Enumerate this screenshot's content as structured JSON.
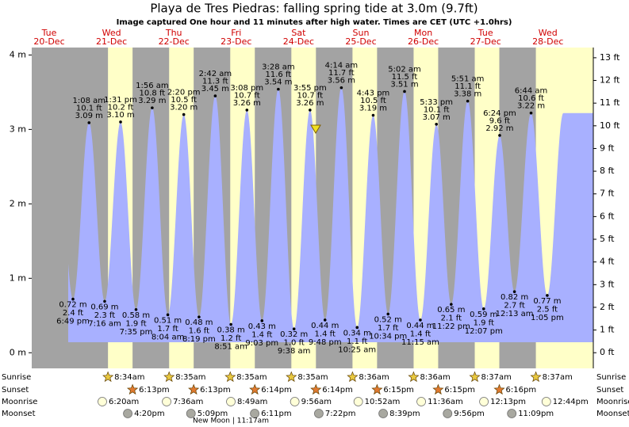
{
  "chart_data": {
    "type": "area",
    "title": "Playa de Tres Piedras: falling  spring tide at 3.0m (9.7ft)",
    "subtitle": "Image captured One hour and 11 minutes after high water. Times are CET (UTC +1.0hrs)",
    "color": "#a8b0ff",
    "daylight_color": "#ffffc8",
    "ylim": [
      -0.21,
      4.1
    ],
    "yticks": [
      {
        "value": 0,
        "label": "0 m"
      },
      {
        "value": 1,
        "label": "1 m"
      },
      {
        "value": 2,
        "label": "2 m"
      },
      {
        "value": 3,
        "label": "3 m"
      },
      {
        "value": 4,
        "label": "4 m"
      }
    ],
    "y2lim": [
      -0.69,
      13.45
    ],
    "y2ticks": [
      {
        "value": 0,
        "label": "0 ft"
      },
      {
        "value": 1,
        "label": "1 ft"
      },
      {
        "value": 2,
        "label": "2 ft"
      },
      {
        "value": 3,
        "label": "3 ft"
      },
      {
        "value": 4,
        "label": "4 ft"
      },
      {
        "value": 5,
        "label": "5 ft"
      },
      {
        "value": 6,
        "label": "6 ft"
      },
      {
        "value": 7,
        "label": "7 ft"
      },
      {
        "value": 8,
        "label": "8 ft"
      },
      {
        "value": 9,
        "label": "9 ft"
      },
      {
        "value": 10,
        "label": "10 ft"
      },
      {
        "value": 11,
        "label": "11 ft"
      },
      {
        "value": 12,
        "label": "12 ft"
      },
      {
        "value": 13,
        "label": "13 ft"
      }
    ],
    "rows": [
      "Sunrise",
      "Sunset",
      "Moonrise",
      "Moonset"
    ],
    "moon_phase": "New Moon | 11:17am",
    "days": [
      {
        "weekday": "Tue",
        "date": "20-Dec",
        "tides": [
          {
            "time": "6:49 pm",
            "value": 0.72,
            "value_label": "0.72 m",
            "ft_label": "2.4 ft"
          }
        ]
      },
      {
        "weekday": "Wed",
        "date": "21-Dec",
        "sunrise": "8:34am",
        "sunset": "6:13pm",
        "moonrise": "6:20am",
        "moonset": "4:20pm",
        "tides": [
          {
            "time": "1:08 am",
            "value": 3.09,
            "value_label": "3.09 m",
            "ft_label": "10.1 ft"
          },
          {
            "time": "7:16 am",
            "value": 0.69,
            "value_label": "0.69 m",
            "ft_label": "2.3 ft"
          },
          {
            "time": "1:31 pm",
            "value": 3.1,
            "value_label": "3.10 m",
            "ft_label": "10.2 ft"
          },
          {
            "time": "7:35 pm",
            "value": 0.58,
            "value_label": "0.58 m",
            "ft_label": "1.9 ft"
          }
        ]
      },
      {
        "weekday": "Thu",
        "date": "22-Dec",
        "sunrise": "8:35am",
        "sunset": "6:13pm",
        "moonrise": "7:36am",
        "moonset": "5:09pm",
        "tides": [
          {
            "time": "1:56 am",
            "value": 3.29,
            "value_label": "3.29 m",
            "ft_label": "10.8 ft"
          },
          {
            "time": "8:04 am",
            "value": 0.51,
            "value_label": "0.51 m",
            "ft_label": "1.7 ft"
          },
          {
            "time": "2:20 pm",
            "value": 3.2,
            "value_label": "3.20 m",
            "ft_label": "10.5 ft"
          },
          {
            "time": "8:19 pm",
            "value": 0.48,
            "value_label": "0.48 m",
            "ft_label": "1.6 ft"
          }
        ]
      },
      {
        "weekday": "Fri",
        "date": "23-Dec",
        "sunrise": "8:35am",
        "sunset": "6:14pm",
        "moonrise": "8:49am",
        "moonset": "6:11pm",
        "tides": [
          {
            "time": "2:42 am",
            "value": 3.45,
            "value_label": "3.45 m",
            "ft_label": "11.3 ft"
          },
          {
            "time": "8:51 am",
            "value": 0.38,
            "value_label": "0.38 m",
            "ft_label": "1.2 ft"
          },
          {
            "time": "3:08 pm",
            "value": 3.26,
            "value_label": "3.26 m",
            "ft_label": "10.7 ft"
          },
          {
            "time": "9:03 pm",
            "value": 0.43,
            "value_label": "0.43 m",
            "ft_label": "1.4 ft"
          }
        ]
      },
      {
        "weekday": "Sat",
        "date": "24-Dec",
        "sunrise": "8:35am",
        "sunset": "6:14pm",
        "moonrise": "9:56am",
        "moonset": "7:22pm",
        "tides": [
          {
            "time": "3:28 am",
            "value": 3.54,
            "value_label": "3.54 m",
            "ft_label": "11.6 ft"
          },
          {
            "time": "9:38 am",
            "value": 0.32,
            "value_label": "0.32 m",
            "ft_label": "1.0 ft"
          },
          {
            "time": "3:55 pm",
            "value": 3.26,
            "value_label": "3.26 m",
            "ft_label": "10.7 ft"
          },
          {
            "time": "9:48 pm",
            "value": 0.44,
            "value_label": "0.44 m",
            "ft_label": "1.4 ft"
          }
        ]
      },
      {
        "weekday": "Sun",
        "date": "25-Dec",
        "sunrise": "8:36am",
        "sunset": "6:15pm",
        "moonrise": "10:52am",
        "moonset": "8:39pm",
        "tides": [
          {
            "time": "4:14 am",
            "value": 3.56,
            "value_label": "3.56 m",
            "ft_label": "11.7 ft"
          },
          {
            "time": "10:25 am",
            "value": 0.34,
            "value_label": "0.34 m",
            "ft_label": "1.1 ft"
          },
          {
            "time": "4:43 pm",
            "value": 3.19,
            "value_label": "3.19 m",
            "ft_label": "10.5 ft"
          },
          {
            "time": "10:34 pm",
            "value": 0.52,
            "value_label": "0.52 m",
            "ft_label": "1.7 ft"
          }
        ]
      },
      {
        "weekday": "Mon",
        "date": "26-Dec",
        "sunrise": "8:36am",
        "sunset": "6:15pm",
        "moonrise": "11:36am",
        "moonset": "9:56pm",
        "tides": [
          {
            "time": "5:02 am",
            "value": 3.51,
            "value_label": "3.51 m",
            "ft_label": "11.5 ft"
          },
          {
            "time": "11:15 am",
            "value": 0.44,
            "value_label": "0.44 m",
            "ft_label": "1.4 ft"
          },
          {
            "time": "5:33 pm",
            "value": 3.07,
            "value_label": "3.07 m",
            "ft_label": "10.1 ft"
          },
          {
            "time": "11:22 pm",
            "value": 0.65,
            "value_label": "0.65 m",
            "ft_label": "2.1 ft"
          }
        ]
      },
      {
        "weekday": "Tue",
        "date": "27-Dec",
        "sunrise": "8:37am",
        "sunset": "6:16pm",
        "moonrise": "12:13pm",
        "moonset": "11:09pm",
        "tides": [
          {
            "time": "5:51 am",
            "value": 3.38,
            "value_label": "3.38 m",
            "ft_label": "11.1 ft"
          },
          {
            "time": "12:07 pm",
            "value": 0.59,
            "value_label": "0.59 m",
            "ft_label": "1.9 ft"
          },
          {
            "time": "6:24 pm",
            "value": 2.92,
            "value_label": "2.92 m",
            "ft_label": "9.6 ft"
          }
        ]
      },
      {
        "weekday": "Wed",
        "date": "28-Dec",
        "sunrise": "8:37am",
        "moonrise": "12:44pm",
        "tides": [
          {
            "time": "12:13 am",
            "value": 0.82,
            "value_label": "0.82 m",
            "ft_label": "2.7 ft"
          },
          {
            "time": "6:44 am",
            "value": 3.22,
            "value_label": "3.22 m",
            "ft_label": "10.6 ft"
          },
          {
            "time": "1:05 pm",
            "value": 0.77,
            "value_label": "0.77 m",
            "ft_label": "2.5 ft"
          }
        ]
      }
    ]
  }
}
